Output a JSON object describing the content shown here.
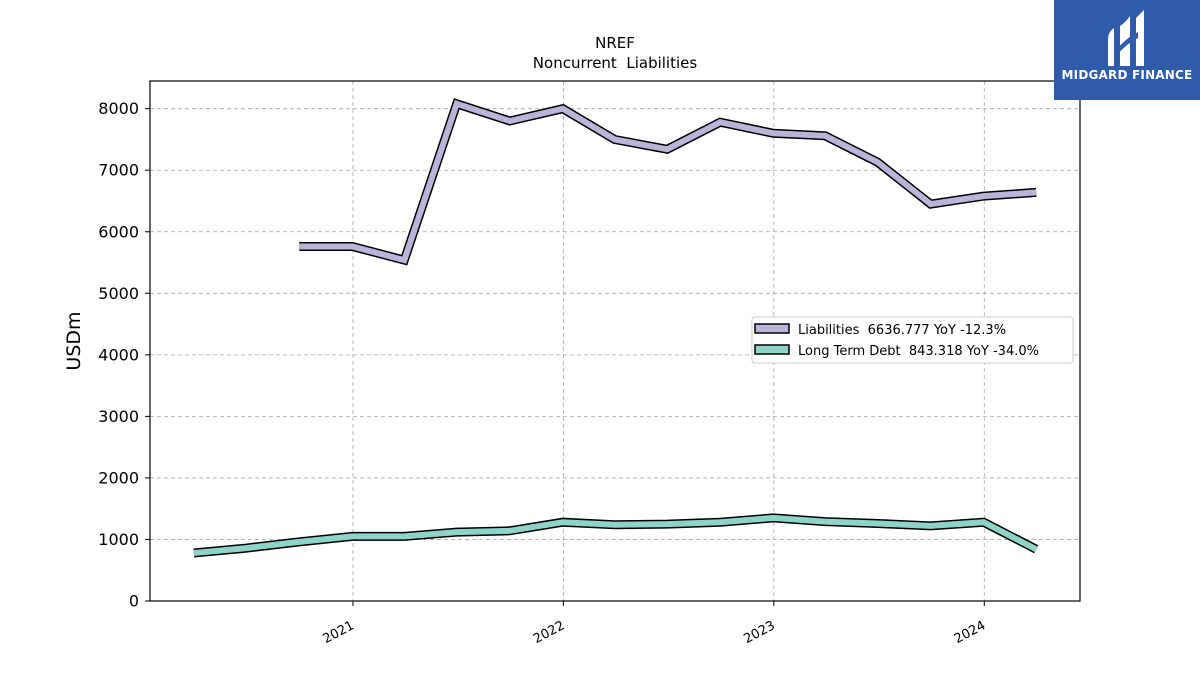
{
  "logo": {
    "text": "MIDGARD FINANCE"
  },
  "colors": {
    "liabilities": "#b9b5d9",
    "debt": "#8dd3c7",
    "outline": "#000000",
    "logo_bg": "#2f5bab"
  },
  "chart_data": {
    "type": "line",
    "title": "NREF",
    "subtitle": "Noncurrent  Liabilities",
    "ylabel": "USDm",
    "xlabel": "",
    "ylim": [
      0,
      8450
    ],
    "yticks": [
      0,
      1000,
      2000,
      3000,
      4000,
      5000,
      6000,
      7000,
      8000
    ],
    "xlim": [
      "2020-01-15",
      "2024-06-15"
    ],
    "xticks": [
      {
        "date": "2021-01-01",
        "label": "2021"
      },
      {
        "date": "2022-01-01",
        "label": "2022"
      },
      {
        "date": "2023-01-01",
        "label": "2023"
      },
      {
        "date": "2024-01-01",
        "label": "2024"
      }
    ],
    "grid": true,
    "legend_position": "right",
    "series": [
      {
        "name": "Liabilities  6636.777 YoY -12.3%",
        "x": [
          "2020-09-30",
          "2020-12-31",
          "2021-03-31",
          "2021-06-30",
          "2021-09-30",
          "2021-12-31",
          "2022-03-31",
          "2022-06-30",
          "2022-09-30",
          "2022-12-31",
          "2023-03-31",
          "2023-06-30",
          "2023-09-30",
          "2023-12-31",
          "2024-03-31"
        ],
        "y": [
          5760,
          5760,
          5540,
          8080,
          7800,
          8000,
          7500,
          7340,
          7780,
          7600,
          7560,
          7130,
          6450,
          6580,
          6640
        ]
      },
      {
        "name": "Long Term Debt  843.318 YoY -34.0%",
        "x": [
          "2020-03-31",
          "2020-06-30",
          "2020-09-30",
          "2020-12-31",
          "2021-03-31",
          "2021-06-30",
          "2021-09-30",
          "2021-12-31",
          "2022-03-31",
          "2022-06-30",
          "2022-09-30",
          "2022-12-31",
          "2023-03-31",
          "2023-06-30",
          "2023-09-30",
          "2023-12-31",
          "2024-03-31"
        ],
        "y": [
          780,
          860,
          960,
          1050,
          1050,
          1120,
          1140,
          1280,
          1240,
          1250,
          1280,
          1350,
          1290,
          1260,
          1220,
          1280,
          840
        ]
      }
    ]
  }
}
